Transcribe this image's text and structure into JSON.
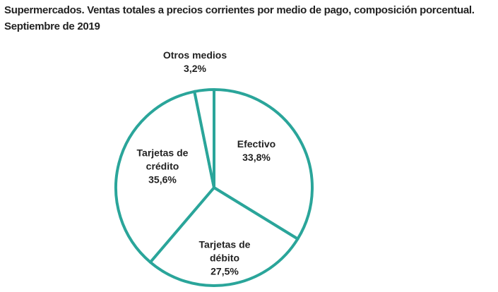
{
  "chart_data": {
    "type": "pie",
    "title": "Supermercados. Ventas totales a precios corrientes por medio de pago, composición porcentual.",
    "subtitle": "Septiembre de 2019",
    "categories": [
      "Efectivo",
      "Tarjetas de débito",
      "Tarjetas de crédito",
      "Otros medios"
    ],
    "values": [
      33.8,
      27.5,
      35.6,
      3.2
    ],
    "value_labels": [
      "33,8%",
      "27,5%",
      "35,6%",
      "3,2%"
    ],
    "color": "#ffffff",
    "edge_color": "#2aa59a"
  }
}
